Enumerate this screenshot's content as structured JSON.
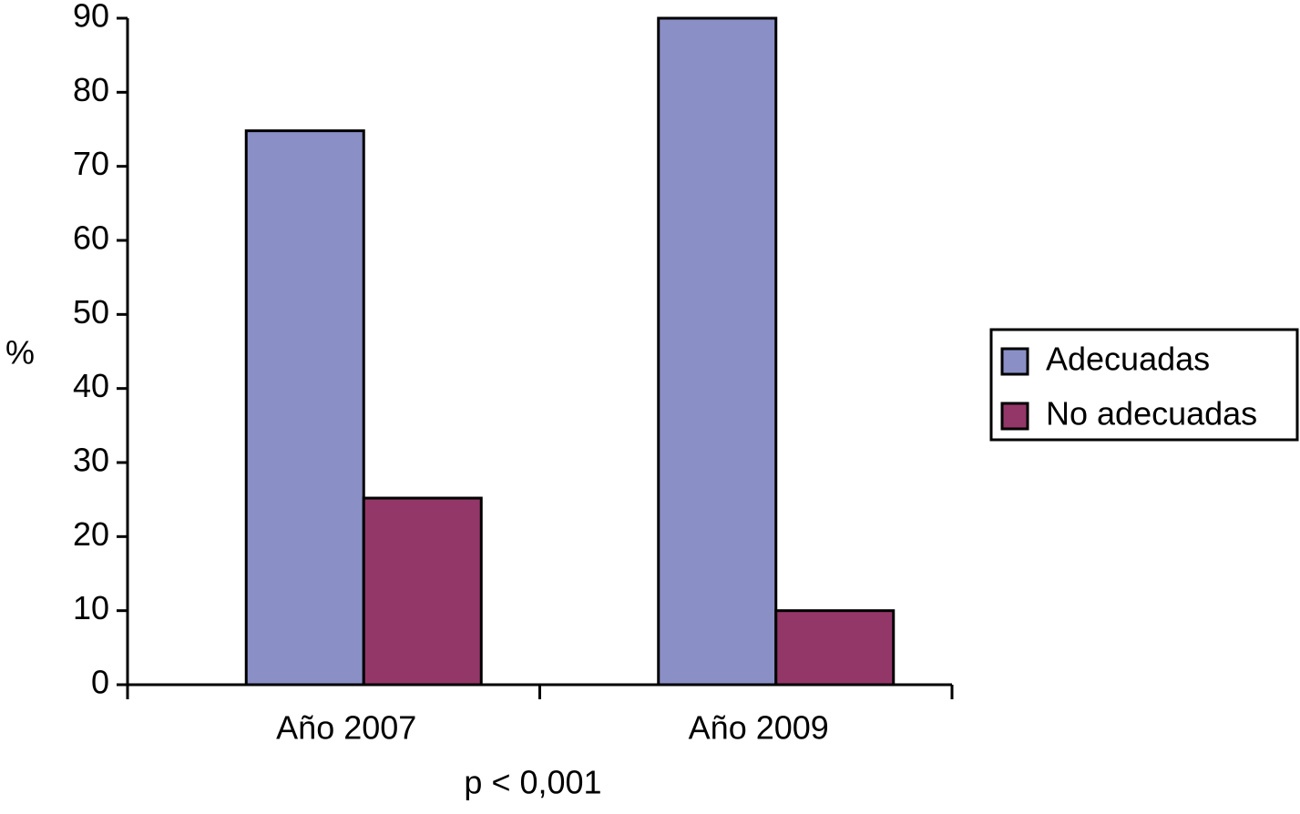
{
  "chart_data": {
    "type": "bar",
    "y_label": "%",
    "annotation": "p < 0,001",
    "categories": [
      "Año 2007",
      "Año 2009"
    ],
    "series": [
      {
        "name": "Adecuadas",
        "color": "#8a8fc6",
        "values": [
          74.8,
          90
        ]
      },
      {
        "name": "No adecuadas",
        "color": "#933768",
        "values": [
          25.2,
          10
        ]
      }
    ],
    "ylim": [
      0,
      90
    ],
    "yticks": [
      0,
      10,
      20,
      30,
      40,
      50,
      60,
      70,
      80,
      90
    ],
    "legend": "right"
  }
}
